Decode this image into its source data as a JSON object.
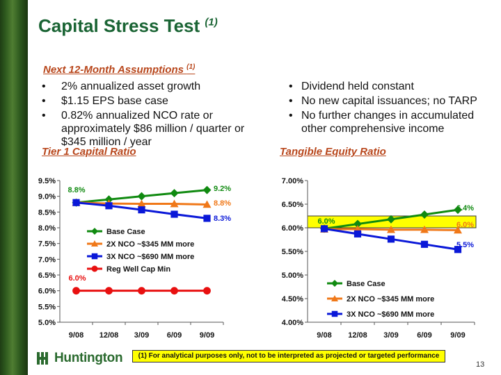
{
  "title": "Capital Stress Test",
  "title_note": "(1)",
  "assumptions": {
    "heading": "Next 12-Month Assumptions",
    "note": "(1)"
  },
  "left_bullets": [
    "2% annualized asset growth",
    "$1.15 EPS base case",
    "0.82% annualized NCO rate or approximately  $86 million / quarter or $345 million / year"
  ],
  "right_bullets": [
    "Dividend held constant",
    "No new capital issuances; no TARP",
    "No further changes in accumulated other comprehensive income"
  ],
  "footnote": "(1)  For analytical purposes only, not to be interpreted as projected or targeted performance",
  "page_number": "13",
  "logo": {
    "text": "Huntington",
    "icon": "huntington-logo-icon"
  },
  "colors": {
    "title": "#1a6434",
    "heading": "#b8461b",
    "base": "#108a10",
    "nco2x": "#f07818",
    "nco3x": "#0a18d8",
    "regmin": "#e81010",
    "highlight": "#ffff00"
  },
  "chart_data": [
    {
      "type": "line",
      "title": "Tier 1 Capital Ratio",
      "categories": [
        "9/08",
        "12/08",
        "3/09",
        "6/09",
        "9/09"
      ],
      "ylim": [
        5.0,
        9.5
      ],
      "yticks": [
        "5.0%",
        "5.5%",
        "6.0%",
        "6.5%",
        "7.0%",
        "7.5%",
        "8.0%",
        "8.5%",
        "9.0%",
        "9.5%"
      ],
      "grid": false,
      "legend_position": "center-left",
      "series": [
        {
          "name": "Base Case",
          "values": [
            8.8,
            8.9,
            9.0,
            9.1,
            9.2
          ],
          "color": "#108a10",
          "marker": "diamond"
        },
        {
          "name": "2X NCO ~$345 MM more",
          "values": [
            8.8,
            8.77,
            8.76,
            8.76,
            8.74
          ],
          "color": "#f07818",
          "marker": "triangle"
        },
        {
          "name": "3X NCO ~$690 MM more",
          "values": [
            8.8,
            8.7,
            8.57,
            8.43,
            8.3
          ],
          "color": "#0a18d8",
          "marker": "square"
        },
        {
          "name": "Reg Well Cap Min",
          "values": [
            6.0,
            6.0,
            6.0,
            6.0,
            6.0
          ],
          "color": "#e81010",
          "marker": "circle"
        }
      ],
      "annotations": [
        {
          "text": "8.8%",
          "color": "#108a10"
        },
        {
          "text": "9.2%",
          "color": "#108a10"
        },
        {
          "text": "8.8%",
          "color": "#f07818"
        },
        {
          "text": "8.3%",
          "color": "#0a18d8"
        },
        {
          "text": "6.0%",
          "color": "#e81010"
        }
      ]
    },
    {
      "type": "line",
      "title": "Tangible Equity Ratio",
      "categories": [
        "9/08",
        "12/08",
        "3/09",
        "6/09",
        "9/09"
      ],
      "ylim": [
        4.0,
        7.0
      ],
      "yticks": [
        "4.00%",
        "4.50%",
        "5.00%",
        "5.50%",
        "6.00%",
        "6.50%",
        "7.00%"
      ],
      "grid": false,
      "legend_position": "bottom-left",
      "highlight_band": [
        6.0,
        6.25
      ],
      "series": [
        {
          "name": "Base Case",
          "values": [
            5.98,
            6.08,
            6.18,
            6.28,
            6.38
          ],
          "color": "#108a10",
          "marker": "diamond"
        },
        {
          "name": "2X NCO ~$345 MM more",
          "values": [
            5.97,
            5.97,
            5.96,
            5.96,
            5.95
          ],
          "color": "#f07818",
          "marker": "triangle"
        },
        {
          "name": "3X NCO ~$690 MM more",
          "values": [
            5.98,
            5.87,
            5.76,
            5.65,
            5.54
          ],
          "color": "#0a18d8",
          "marker": "square"
        }
      ],
      "annotations": [
        {
          "text": "6.0%",
          "color": "#108a10"
        },
        {
          "text": "6.4%",
          "color": "#108a10"
        },
        {
          "text": "6.0%",
          "color": "#f07818"
        },
        {
          "text": "5.5%",
          "color": "#0a18d8"
        }
      ]
    }
  ]
}
